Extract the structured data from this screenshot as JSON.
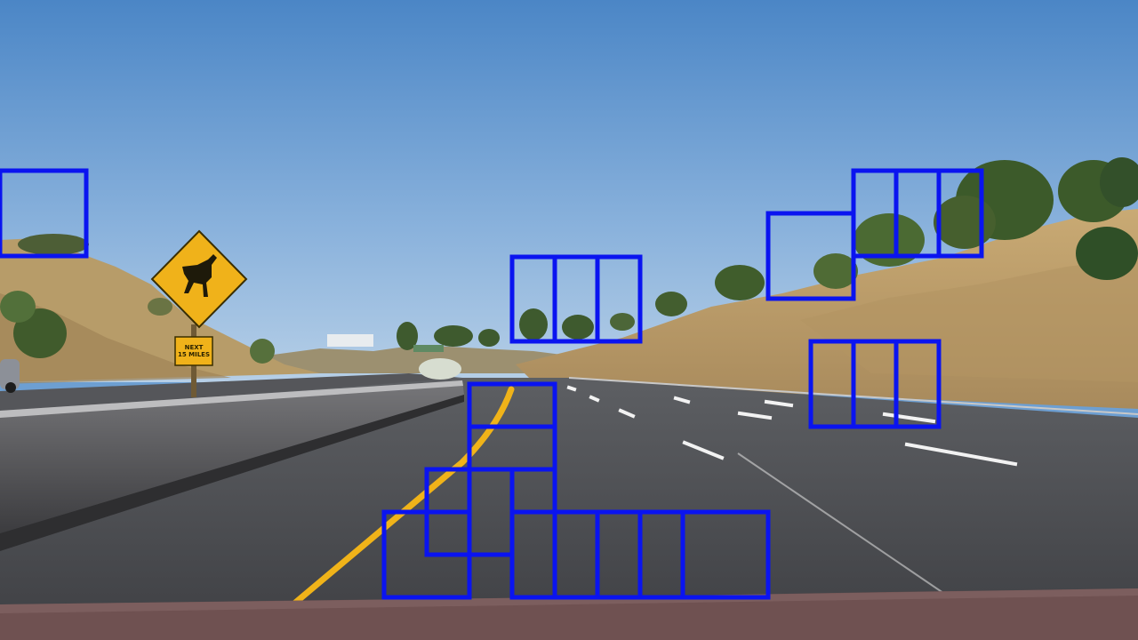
{
  "image": {
    "description_type": "road-scene-with-detection-boxes"
  },
  "sign": {
    "line1": "NEXT",
    "line2": "15 MILES"
  },
  "colors": {
    "box": "#0a14f0",
    "sky_top": "#4e88c8",
    "sky_bottom": "#a9c6e3",
    "road": "#4b4c50",
    "lane_yellow": "#f2b51c",
    "hill": "#bfa06e",
    "barrier": "#5a5a5c",
    "hood": "#6e4a4a"
  },
  "detection_box_count": 21
}
